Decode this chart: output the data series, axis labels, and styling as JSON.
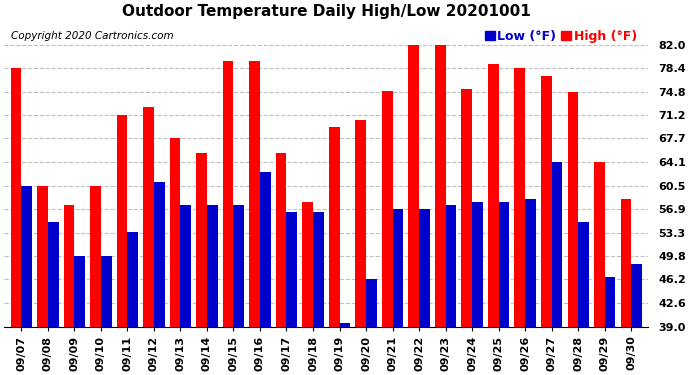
{
  "title": "Outdoor Temperature Daily High/Low 20201001",
  "copyright": "Copyright 2020 Cartronics.com",
  "legend_low": "Low",
  "legend_high": "High",
  "legend_unit": "(°F)",
  "dates": [
    "09/07",
    "09/08",
    "09/09",
    "09/10",
    "09/11",
    "09/12",
    "09/13",
    "09/14",
    "09/15",
    "09/16",
    "09/17",
    "09/18",
    "09/19",
    "09/20",
    "09/21",
    "09/22",
    "09/23",
    "09/24",
    "09/25",
    "09/26",
    "09/27",
    "09/28",
    "09/29",
    "09/30"
  ],
  "highs": [
    78.4,
    60.5,
    57.5,
    60.5,
    71.2,
    72.5,
    67.7,
    65.5,
    79.5,
    79.5,
    65.5,
    58.0,
    69.5,
    70.5,
    75.0,
    82.0,
    82.0,
    75.2,
    79.0,
    78.4,
    77.2,
    74.8,
    64.1,
    58.5
  ],
  "lows": [
    60.5,
    55.0,
    49.8,
    49.8,
    53.5,
    61.0,
    57.5,
    57.5,
    57.5,
    62.5,
    56.5,
    56.5,
    39.5,
    46.2,
    56.9,
    56.9,
    57.5,
    58.0,
    58.0,
    58.5,
    64.1,
    55.0,
    46.5,
    48.5
  ],
  "bar_color_high": "#ff0000",
  "bar_color_low": "#0000cc",
  "background_color": "#ffffff",
  "plot_bg_color": "#ffffff",
  "grid_color": "#c0c0c0",
  "title_fontsize": 11,
  "copyright_fontsize": 7.5,
  "legend_fontsize": 9,
  "tick_fontsize": 8,
  "ylim_min": 39.0,
  "ylim_max": 85.5,
  "yticks": [
    39.0,
    42.6,
    46.2,
    49.8,
    53.3,
    56.9,
    60.5,
    64.1,
    67.7,
    71.2,
    74.8,
    78.4,
    82.0
  ]
}
